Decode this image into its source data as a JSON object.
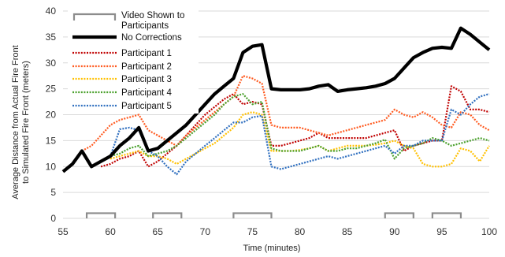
{
  "chart_data": {
    "type": "line",
    "xlabel": "Time (minutes)",
    "ylabel_lines": [
      "Average Distance from Actual Fire Front",
      "to Simulated Fire Front (meters)"
    ],
    "xlim": [
      55,
      100
    ],
    "ylim": [
      0,
      40
    ],
    "x_ticks": [
      55,
      60,
      65,
      70,
      75,
      80,
      85,
      90,
      95,
      100
    ],
    "y_ticks": [
      0,
      5,
      10,
      15,
      20,
      25,
      30,
      35,
      40
    ],
    "grid": "horizontal",
    "legend": {
      "position": "top-left",
      "entries": [
        {
          "label": "Video Shown to Participants",
          "lines": [
            "Video Shown to",
            "Participants"
          ]
        },
        {
          "label": "No Corrections"
        },
        {
          "label": "Participant 1"
        },
        {
          "label": "Participant 2"
        },
        {
          "label": "Participant 3"
        },
        {
          "label": "Participant 4"
        },
        {
          "label": "Participant 5"
        }
      ]
    },
    "video_intervals": [
      [
        57.5,
        60.5
      ],
      [
        64.5,
        67.5
      ],
      [
        73,
        77
      ],
      [
        89,
        92
      ],
      [
        94,
        97
      ]
    ],
    "series": [
      {
        "name": "No Corrections",
        "color": "#000000",
        "style": "solid",
        "points": [
          [
            55,
            9
          ],
          [
            56,
            10.5
          ],
          [
            57,
            13
          ],
          [
            58,
            10
          ],
          [
            59,
            11
          ],
          [
            60,
            12
          ],
          [
            61,
            14
          ],
          [
            62,
            15.5
          ],
          [
            63,
            17.5
          ],
          [
            64,
            13
          ],
          [
            65,
            13.5
          ],
          [
            66,
            15
          ],
          [
            67,
            16.5
          ],
          [
            68,
            18
          ],
          [
            69,
            20
          ],
          [
            70,
            22
          ],
          [
            71,
            24
          ],
          [
            72,
            25.5
          ],
          [
            73,
            27
          ],
          [
            74,
            32
          ],
          [
            75,
            33.2
          ],
          [
            76,
            33.5
          ],
          [
            77,
            25
          ],
          [
            78,
            24.8
          ],
          [
            79,
            24.8
          ],
          [
            80,
            24.8
          ],
          [
            81,
            25
          ],
          [
            82,
            25.5
          ],
          [
            83,
            25.8
          ],
          [
            84,
            24.5
          ],
          [
            85,
            24.8
          ],
          [
            86,
            25
          ],
          [
            87,
            25.2
          ],
          [
            88,
            25.5
          ],
          [
            89,
            26
          ],
          [
            90,
            27
          ],
          [
            91,
            29
          ],
          [
            92,
            31
          ],
          [
            93,
            32
          ],
          [
            94,
            32.8
          ],
          [
            95,
            33
          ],
          [
            96,
            32.8
          ],
          [
            97,
            36.7
          ],
          [
            98,
            35.5
          ],
          [
            99,
            34
          ],
          [
            100,
            32.5
          ]
        ]
      },
      {
        "name": "Participant 1",
        "color": "#c00000",
        "style": "dotted",
        "points": [
          [
            59,
            10
          ],
          [
            60,
            10.5
          ],
          [
            61,
            11.5
          ],
          [
            62,
            12
          ],
          [
            63,
            13
          ],
          [
            64,
            10
          ],
          [
            65,
            11
          ],
          [
            66,
            12.5
          ],
          [
            67,
            14
          ],
          [
            68,
            16
          ],
          [
            69,
            18
          ],
          [
            70,
            20
          ],
          [
            71,
            21.5
          ],
          [
            72,
            23
          ],
          [
            73,
            24
          ],
          [
            74,
            22
          ],
          [
            75,
            22.5
          ],
          [
            76,
            22
          ],
          [
            77,
            14
          ],
          [
            78,
            14
          ],
          [
            79,
            14.5
          ],
          [
            80,
            15
          ],
          [
            81,
            15.5
          ],
          [
            82,
            16.5
          ],
          [
            83,
            15.5
          ],
          [
            84,
            15.5
          ],
          [
            85,
            15.5
          ],
          [
            86,
            15.5
          ],
          [
            87,
            15.5
          ],
          [
            88,
            16
          ],
          [
            89,
            16.5
          ],
          [
            90,
            17
          ],
          [
            91,
            13
          ],
          [
            92,
            14
          ],
          [
            93,
            14.5
          ],
          [
            94,
            15
          ],
          [
            95,
            15
          ],
          [
            96,
            25.5
          ],
          [
            97,
            24.5
          ],
          [
            98,
            21
          ],
          [
            99,
            21
          ],
          [
            100,
            20.5
          ]
        ]
      },
      {
        "name": "Participant 2",
        "color": "#ff5a1f",
        "style": "dotted",
        "points": [
          [
            57,
            13
          ],
          [
            58,
            14
          ],
          [
            59,
            16
          ],
          [
            60,
            18
          ],
          [
            61,
            19
          ],
          [
            62,
            19.5
          ],
          [
            63,
            20
          ],
          [
            64,
            17
          ],
          [
            65,
            16
          ],
          [
            66,
            15
          ],
          [
            67,
            14
          ],
          [
            68,
            16
          ],
          [
            69,
            17.5
          ],
          [
            70,
            19
          ],
          [
            71,
            20.5
          ],
          [
            72,
            22
          ],
          [
            73,
            23.5
          ],
          [
            74,
            27.5
          ],
          [
            75,
            27
          ],
          [
            76,
            26
          ],
          [
            77,
            18
          ],
          [
            78,
            17.5
          ],
          [
            79,
            17.5
          ],
          [
            80,
            17.5
          ],
          [
            81,
            17
          ],
          [
            82,
            16.5
          ],
          [
            83,
            16
          ],
          [
            84,
            16.5
          ],
          [
            85,
            17
          ],
          [
            86,
            17.5
          ],
          [
            87,
            18
          ],
          [
            88,
            18.5
          ],
          [
            89,
            19
          ],
          [
            90,
            21
          ],
          [
            91,
            20
          ],
          [
            92,
            19.5
          ],
          [
            93,
            20.5
          ],
          [
            94,
            19.5
          ],
          [
            95,
            18
          ],
          [
            96,
            17.5
          ],
          [
            97,
            20.5
          ],
          [
            98,
            20
          ],
          [
            99,
            18
          ],
          [
            100,
            17
          ]
        ]
      },
      {
        "name": "Participant 3",
        "color": "#ffc000",
        "style": "dotted",
        "points": [
          [
            60,
            11.5
          ],
          [
            61,
            12
          ],
          [
            62,
            12.5
          ],
          [
            63,
            13
          ],
          [
            64,
            12
          ],
          [
            65,
            12
          ],
          [
            66,
            11.5
          ],
          [
            67,
            10.5
          ],
          [
            68,
            11.5
          ],
          [
            69,
            12.5
          ],
          [
            70,
            13.5
          ],
          [
            71,
            14.5
          ],
          [
            72,
            16
          ],
          [
            73,
            17.5
          ],
          [
            74,
            20
          ],
          [
            75,
            20.5
          ],
          [
            76,
            20
          ],
          [
            77,
            13
          ],
          [
            78,
            13
          ],
          [
            79,
            13
          ],
          [
            80,
            13.2
          ],
          [
            81,
            13.5
          ],
          [
            82,
            14
          ],
          [
            83,
            13
          ],
          [
            84,
            13.5
          ],
          [
            85,
            14
          ],
          [
            86,
            14
          ],
          [
            87,
            14
          ],
          [
            88,
            14.2
          ],
          [
            89,
            14.5
          ],
          [
            90,
            15
          ],
          [
            91,
            14
          ],
          [
            92,
            13.5
          ],
          [
            93,
            10.5
          ],
          [
            94,
            10
          ],
          [
            95,
            10
          ],
          [
            96,
            10.5
          ],
          [
            97,
            13.5
          ],
          [
            98,
            13
          ],
          [
            99,
            11
          ],
          [
            100,
            14
          ]
        ]
      },
      {
        "name": "Participant 4",
        "color": "#4aa02c",
        "style": "dotted",
        "points": [
          [
            59,
            11
          ],
          [
            60,
            12
          ],
          [
            61,
            12.5
          ],
          [
            62,
            13.5
          ],
          [
            63,
            14
          ],
          [
            64,
            12
          ],
          [
            65,
            12.5
          ],
          [
            66,
            13
          ],
          [
            67,
            14
          ],
          [
            68,
            15.5
          ],
          [
            69,
            17
          ],
          [
            70,
            18.5
          ],
          [
            71,
            20
          ],
          [
            72,
            22
          ],
          [
            73,
            23.5
          ],
          [
            74,
            24
          ],
          [
            75,
            22
          ],
          [
            76,
            22.5
          ],
          [
            77,
            13.5
          ],
          [
            78,
            13
          ],
          [
            79,
            13
          ],
          [
            80,
            13
          ],
          [
            81,
            13.5
          ],
          [
            82,
            14
          ],
          [
            83,
            13
          ],
          [
            84,
            13
          ],
          [
            85,
            13.5
          ],
          [
            86,
            13.5
          ],
          [
            87,
            14
          ],
          [
            88,
            14.5
          ],
          [
            89,
            15.2
          ],
          [
            90,
            11.5
          ],
          [
            91,
            13.5
          ],
          [
            92,
            14
          ],
          [
            93,
            14.5
          ],
          [
            94,
            15.5
          ],
          [
            95,
            15
          ],
          [
            96,
            14
          ],
          [
            97,
            14.5
          ],
          [
            98,
            15
          ],
          [
            99,
            15.5
          ],
          [
            100,
            15
          ]
        ]
      },
      {
        "name": "Participant 5",
        "color": "#2f6fbf",
        "style": "dotted",
        "points": [
          [
            60,
            12
          ],
          [
            61,
            17.2
          ],
          [
            62,
            17.5
          ],
          [
            63,
            17
          ],
          [
            64,
            13
          ],
          [
            65,
            12
          ],
          [
            66,
            10
          ],
          [
            67,
            8.5
          ],
          [
            68,
            11
          ],
          [
            69,
            12.5
          ],
          [
            70,
            14
          ],
          [
            71,
            15.5
          ],
          [
            72,
            17
          ],
          [
            73,
            18.5
          ],
          [
            74,
            18.5
          ],
          [
            75,
            19.5
          ],
          [
            76,
            19.8
          ],
          [
            77,
            10
          ],
          [
            78,
            9.5
          ],
          [
            79,
            10
          ],
          [
            80,
            10.5
          ],
          [
            81,
            11
          ],
          [
            82,
            11.5
          ],
          [
            83,
            12
          ],
          [
            84,
            11.5
          ],
          [
            85,
            12
          ],
          [
            86,
            12.5
          ],
          [
            87,
            13
          ],
          [
            88,
            13.5
          ],
          [
            89,
            14
          ],
          [
            90,
            12.5
          ],
          [
            91,
            14
          ],
          [
            92,
            14
          ],
          [
            93,
            15
          ],
          [
            94,
            15
          ],
          [
            95,
            15
          ],
          [
            96,
            21
          ],
          [
            97,
            20
          ],
          [
            98,
            22
          ],
          [
            99,
            23.5
          ],
          [
            100,
            24
          ]
        ]
      }
    ]
  }
}
